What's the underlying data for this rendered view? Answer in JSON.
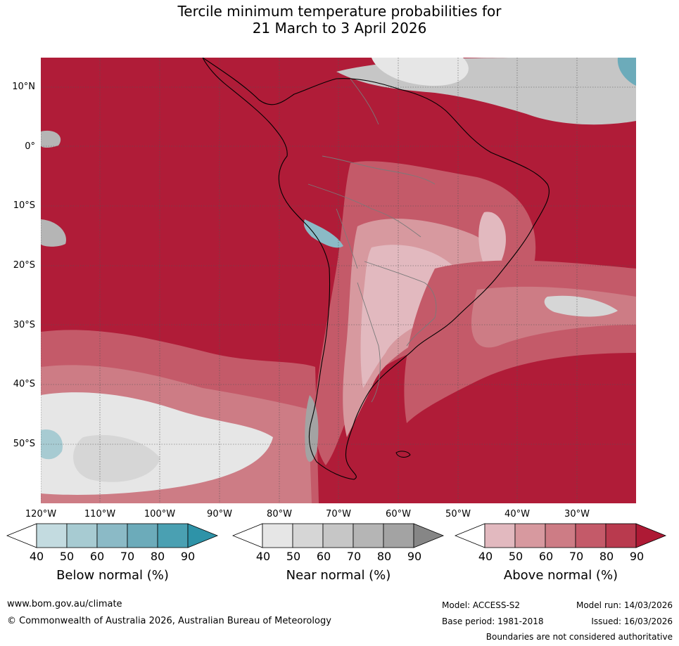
{
  "title": {
    "line1": "Tercile minimum temperature probabilities for",
    "line2": "21 March to 3 April 2026"
  },
  "map": {
    "lat_labels": [
      "10°N",
      "0°",
      "10°S",
      "20°S",
      "30°S",
      "40°S",
      "50°S"
    ],
    "lon_labels": [
      "120°W",
      "110°W",
      "100°W",
      "90°W",
      "80°W",
      "70°W",
      "60°W",
      "50°W",
      "40°W",
      "30°W"
    ]
  },
  "legend": {
    "below": {
      "label": "Below normal (%)",
      "ticks": [
        "40",
        "50",
        "60",
        "70",
        "80",
        "90"
      ],
      "colors": [
        "#ffffff",
        "#c3dbe0",
        "#a7cbd2",
        "#8bbac6",
        "#6cabba",
        "#4aa0b2",
        "#2e93a8"
      ]
    },
    "near": {
      "label": "Near normal (%)",
      "ticks": [
        "40",
        "50",
        "60",
        "70",
        "80",
        "90"
      ],
      "colors": [
        "#ffffff",
        "#e6e6e6",
        "#d6d6d6",
        "#c6c6c6",
        "#b5b5b5",
        "#a3a3a3",
        "#868686"
      ]
    },
    "above": {
      "label": "Above normal (%)",
      "ticks": [
        "40",
        "50",
        "60",
        "70",
        "80",
        "90"
      ],
      "colors": [
        "#ffffff",
        "#e2b9bf",
        "#d7999f",
        "#cd7c85",
        "#c45a69",
        "#b93a4e",
        "#ae1a35"
      ]
    }
  },
  "footer": {
    "website": "www.bom.gov.au/climate",
    "copyright": "© Commonwealth of Australia 2026, Australian Bureau of Meteorology",
    "model": "Model: ACCESS-S2",
    "model_run": "Model run: 14/03/2026",
    "base_period": "Base period: 1981-2018",
    "issued": "Issued: 16/03/2026",
    "disclaimer": "Boundaries are not considered authoritative"
  }
}
